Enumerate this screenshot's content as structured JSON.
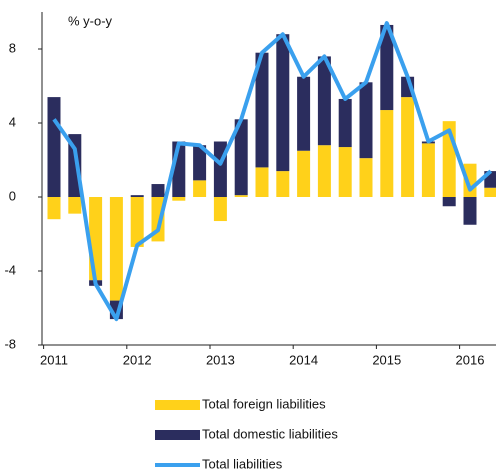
{
  "chart_data": {
    "type": "bar",
    "y_label": "% y-o-y",
    "categories": [
      "2011",
      null,
      null,
      null,
      "2012",
      null,
      null,
      null,
      "2013",
      null,
      null,
      null,
      "2014",
      null,
      null,
      null,
      "2015",
      null,
      null,
      null,
      "2016",
      null
    ],
    "series": [
      {
        "name": "Total foreign liabilities",
        "type": "bar",
        "color": "#ffd11a",
        "values": [
          -1.2,
          -0.9,
          -4.5,
          -5.6,
          -2.7,
          -2.4,
          -0.2,
          0.9,
          -1.3,
          0.1,
          1.6,
          1.4,
          2.5,
          2.8,
          2.7,
          2.1,
          4.7,
          5.4,
          2.9,
          4.1,
          1.8,
          0.5
        ]
      },
      {
        "name": "Total domestic liabilities",
        "type": "bar",
        "color": "#2b2d5e",
        "values": [
          5.4,
          3.4,
          -0.3,
          -1.0,
          0.1,
          0.7,
          3.0,
          1.9,
          3.0,
          4.1,
          6.2,
          7.4,
          4.0,
          4.8,
          2.6,
          4.1,
          4.6,
          1.1,
          0.1,
          -0.5,
          -1.5,
          0.9
        ]
      },
      {
        "name": "Total liabilities",
        "type": "line",
        "color": "#3aa0ee",
        "values": [
          4.2,
          2.6,
          -4.7,
          -6.6,
          -2.6,
          -1.8,
          2.9,
          2.8,
          1.8,
          4.2,
          7.8,
          8.8,
          6.5,
          7.6,
          5.3,
          6.2,
          9.4,
          6.5,
          3.0,
          3.6,
          0.4,
          1.4
        ]
      }
    ],
    "ylim": [
      -8,
      10
    ],
    "yticks": [
      -8,
      -4,
      0,
      4,
      8
    ],
    "grid": false
  }
}
